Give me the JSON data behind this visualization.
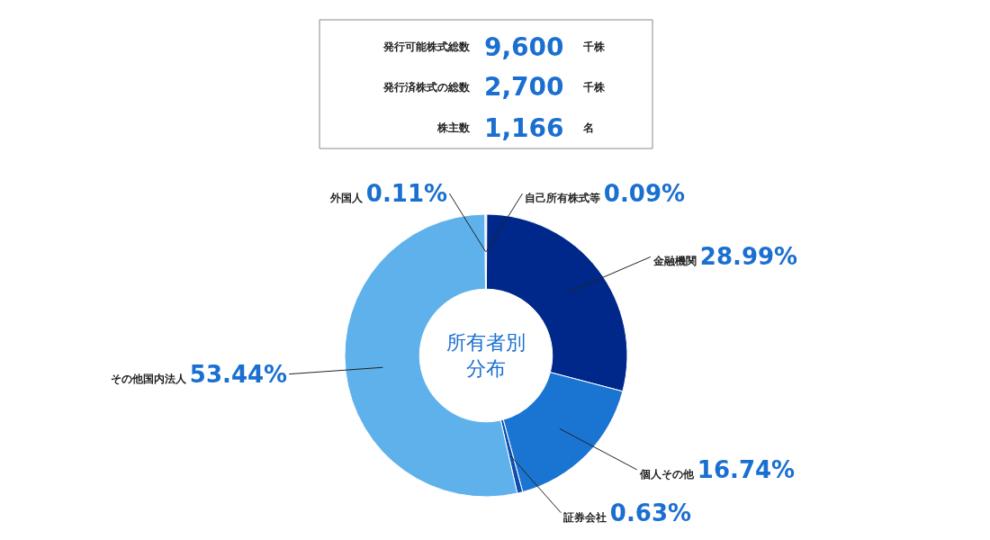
{
  "chart_data": {
    "type": "donut",
    "title": "所有者別分布",
    "categories": [
      "自己所有株式等",
      "金融機関",
      "個人その他",
      "証券会社",
      "その他国内法人",
      "外国人"
    ],
    "values": [
      0.09,
      28.99,
      16.74,
      0.63,
      53.44,
      0.11
    ],
    "colors": [
      "#0d2a7a",
      "#00288a",
      "#1a75d2",
      "#0d4fb0",
      "#5eb1ea",
      "#a9d5f5"
    ],
    "value_labels": [
      "0.09%",
      "28.99%",
      "16.74%",
      "0.63%",
      "53.44%",
      "0.11%"
    ],
    "annotations": [
      "発行可能株式総数",
      "9,600",
      "千株",
      "発行済株式の総数",
      "2,700",
      "千株",
      "株主数",
      "1,166",
      "名"
    ]
  }
}
